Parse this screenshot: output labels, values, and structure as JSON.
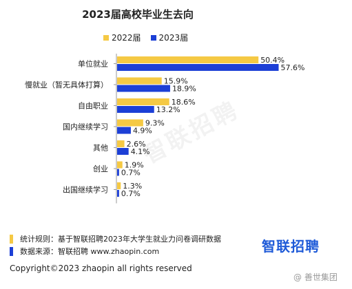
{
  "title": "2023届高校毕业生去向",
  "colors": {
    "y2022": "#F5C944",
    "y2023": "#1C3FD6"
  },
  "chart_data": {
    "type": "bar",
    "orientation": "horizontal",
    "categories": [
      "单位就业",
      "慢就业（暂无具体打算）",
      "自由职业",
      "国内继续学习",
      "其他",
      "创业",
      "出国继续学习"
    ],
    "series": [
      {
        "name": "2022届",
        "values": [
          50.4,
          15.9,
          18.6,
          9.3,
          2.6,
          1.9,
          1.3
        ],
        "labels": [
          "50.4%",
          "15.9%",
          "18.6%",
          "9.3%",
          "2.6%",
          "1.9%",
          "1.3%"
        ]
      },
      {
        "name": "2023届",
        "values": [
          57.6,
          18.9,
          13.2,
          4.9,
          4.1,
          0.7,
          0.7
        ],
        "labels": [
          "57.6%",
          "18.9%",
          "13.2%",
          "4.9%",
          "4.1%",
          "0.7%",
          "0.7%"
        ]
      }
    ],
    "xlim": [
      0,
      70
    ],
    "grid": false,
    "legend": "top"
  },
  "footer": {
    "rule_note": "统计规则：基于智联招聘2023年大学生就业力问卷调研数据",
    "source_note": "数据来源：智联招聘 www.zhaopin.com",
    "logo_text": "智联招聘",
    "copyright": "Copyright©2023 zhaopin all rights reserved",
    "bg_watermark": "智联招聘",
    "corner_watermark": "@ 善世集团"
  }
}
